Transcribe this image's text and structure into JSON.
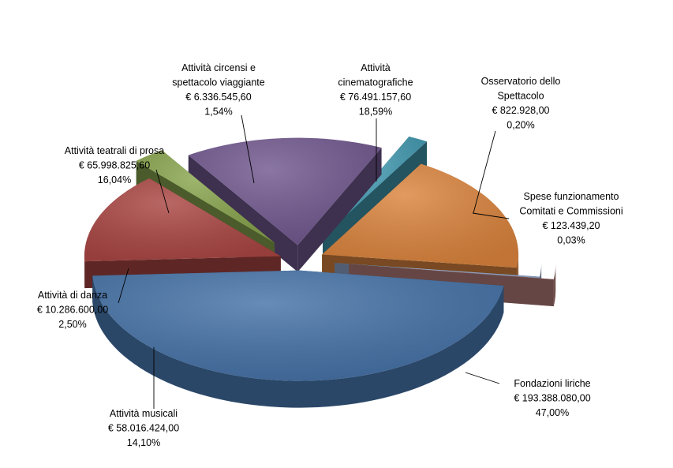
{
  "chart_data": {
    "type": "pie",
    "exploded": true,
    "style": "3d",
    "slices": [
      {
        "name": "Fondazioni liriche",
        "lines": [
          "Fondazioni liriche"
        ],
        "amount": "€ 193.388.080,00",
        "value": 193388080.0,
        "percent": "47,00%",
        "color": "#4572A7"
      },
      {
        "name": "Attività musicali",
        "lines": [
          "Attività musicali"
        ],
        "amount": "€ 58.016.424,00",
        "value": 58016424.0,
        "percent": "14,10%",
        "color": "#AA4643"
      },
      {
        "name": "Attività di danza",
        "lines": [
          "Attività di danza"
        ],
        "amount": "€ 10.286.600,00",
        "value": 10286600.0,
        "percent": "2,50%",
        "color": "#89A54E"
      },
      {
        "name": "Attività teatrali di prosa",
        "lines": [
          "Attività teatrali di prosa"
        ],
        "amount": "€ 65.998.825,60",
        "value": 65998825.6,
        "percent": "16,04%",
        "color": "#71588F"
      },
      {
        "name": "Attività circensi e spettacolo viaggiante",
        "lines": [
          "Attività circensi e",
          "spettacolo viaggiante"
        ],
        "amount": "€ 6.336.545,60",
        "value": 6336545.6,
        "percent": "1,54%",
        "color": "#4198AF"
      },
      {
        "name": "Attività cinematografiche",
        "lines": [
          "Attività",
          "cinematografiche"
        ],
        "amount": "€ 76.491.157,60",
        "value": 76491157.6,
        "percent": "18,59%",
        "color": "#DB843D"
      },
      {
        "name": "Osservatorio dello Spettacolo",
        "lines": [
          "Osservatorio dello",
          "Spettacolo"
        ],
        "amount": "€ 822.928,00",
        "value": 822928.0,
        "percent": "0,20%",
        "color": "#93A9CF"
      },
      {
        "name": "Spese funzionamento Comitati e Commissioni",
        "lines": [
          "Spese funzionamento",
          "Comitati e Commissioni"
        ],
        "amount": "€ 123.439,20",
        "value": 123439.2,
        "percent": "0,03%",
        "color": "#B97F7B"
      }
    ]
  }
}
